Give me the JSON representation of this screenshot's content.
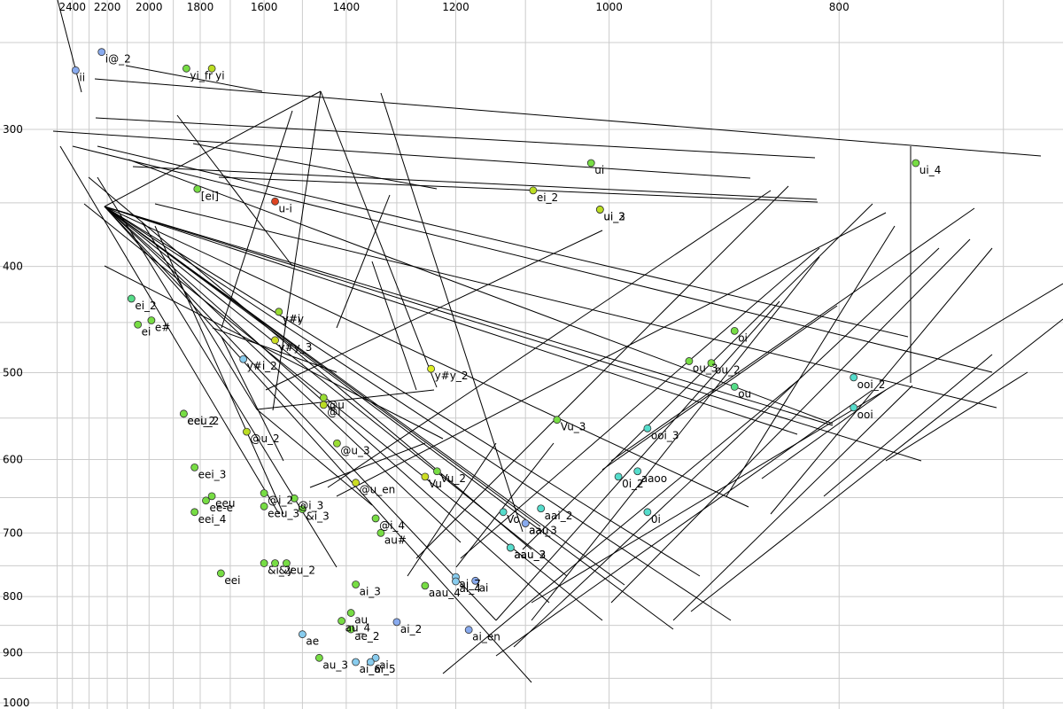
{
  "chart_data": {
    "type": "scatter",
    "title": "",
    "xlabel": "",
    "ylabel": "",
    "x_axis": {
      "reversed": true,
      "scale": "reciprocal",
      "ticks": [
        2400,
        2200,
        2000,
        1800,
        1600,
        1400,
        1200,
        1000,
        800
      ]
    },
    "y_axis": {
      "reversed": true,
      "scale": "log",
      "ticks": [
        300,
        400,
        500,
        600,
        700,
        800,
        900,
        1000
      ]
    },
    "grid": true,
    "points": [
      {
        "label": "ii",
        "f2": 2380,
        "f1": 265,
        "color": "#88aaee"
      },
      {
        "label": "i@_2",
        "f2": 2230,
        "f1": 255,
        "color": "#88aaee"
      },
      {
        "label": "yi_fr",
        "f2": 1850,
        "f1": 264,
        "color": "#77dd44"
      },
      {
        "label": "yi",
        "f2": 1760,
        "f1": 264,
        "color": "#bbdd22"
      },
      {
        "label": "ui",
        "f2": 1020,
        "f1": 322,
        "color": "#77dd44"
      },
      {
        "label": "ui_4",
        "f2": 750,
        "f1": 322,
        "color": "#77dd44"
      },
      {
        "label": "[ei]",
        "f2": 1810,
        "f1": 340,
        "color": "#77dd44"
      },
      {
        "label": "u-i",
        "f2": 1570,
        "f1": 349,
        "color": "#dd4422"
      },
      {
        "label": "ei_2",
        "f2": 1090,
        "f1": 341,
        "color": "#bbdd22"
      },
      {
        "label": "ui_2",
        "f2": 1010,
        "f1": 355,
        "color": "#bbdd22"
      },
      {
        "label": "ui_3",
        "f2": 1010,
        "f1": 355,
        "color": "#bbdd22"
      },
      {
        "label": "ei_2",
        "f2": 2080,
        "f1": 428,
        "color": "#55dd88"
      },
      {
        "label": "ei",
        "f2": 2050,
        "f1": 452,
        "color": "#77dd44"
      },
      {
        "label": "e#",
        "f2": 1990,
        "f1": 448,
        "color": "#77dd44"
      },
      {
        "label": "y#i",
        "f2": 1560,
        "f1": 440,
        "color": "#99dd33"
      },
      {
        "label": "y#y",
        "f2": 1560,
        "f1": 440,
        "color": "#99dd33"
      },
      {
        "label": "y#y_3",
        "f2": 1570,
        "f1": 467,
        "color": "#ccdd22"
      },
      {
        "label": "y#i_2",
        "f2": 1660,
        "f1": 486,
        "color": "#88ccee"
      },
      {
        "label": "y#y_2",
        "f2": 1240,
        "f1": 496,
        "color": "#ddee22"
      },
      {
        "label": "oi",
        "f2": 880,
        "f1": 458,
        "color": "#77dd44"
      },
      {
        "label": "ou_3",
        "f2": 920,
        "f1": 488,
        "color": "#77dd44"
      },
      {
        "label": "ou_2",
        "f2": 900,
        "f1": 490,
        "color": "#77dd44"
      },
      {
        "label": "ou",
        "f2": 880,
        "f1": 515,
        "color": "#55dd88"
      },
      {
        "label": "ooi_2",
        "f2": 790,
        "f1": 505,
        "color": "#55ddcc"
      },
      {
        "label": "ooi",
        "f2": 790,
        "f1": 538,
        "color": "#55ddcc"
      },
      {
        "label": "@u",
        "f2": 1450,
        "f1": 527,
        "color": "#99dd33"
      },
      {
        "label": "@i",
        "f2": 1450,
        "f1": 535,
        "color": "#bbdd22"
      },
      {
        "label": "eeu_2",
        "f2": 1860,
        "f1": 545,
        "color": "#77dd44"
      },
      {
        "label": "eei_2",
        "f2": 1860,
        "f1": 545,
        "color": "#77dd44"
      },
      {
        "label": "@u_2",
        "f2": 1650,
        "f1": 566,
        "color": "#bbdd22"
      },
      {
        "label": "@u_3",
        "f2": 1420,
        "f1": 580,
        "color": "#99dd33"
      },
      {
        "label": "Vu_3",
        "f2": 1060,
        "f1": 552,
        "color": "#77dd44"
      },
      {
        "label": "ooi_3",
        "f2": 960,
        "f1": 562,
        "color": "#55ddcc"
      },
      {
        "label": "eei_3",
        "f2": 1820,
        "f1": 610,
        "color": "#77dd44"
      },
      {
        "label": "Vu",
        "f2": 1250,
        "f1": 622,
        "color": "#ccdd22"
      },
      {
        "label": "Vu_2",
        "f2": 1230,
        "f1": 615,
        "color": "#77dd44"
      },
      {
        "label": "@u_en",
        "f2": 1380,
        "f1": 630,
        "color": "#ccdd22"
      },
      {
        "label": "0i_2",
        "f2": 990,
        "f1": 622,
        "color": "#55ddcc"
      },
      {
        "label": "aaoo",
        "f2": 970,
        "f1": 615,
        "color": "#55ddcc"
      },
      {
        "label": "eeu",
        "f2": 1760,
        "f1": 648,
        "color": "#77dd44"
      },
      {
        "label": "ee-e",
        "f2": 1780,
        "f1": 654,
        "color": "#77dd44"
      },
      {
        "label": "@i_2",
        "f2": 1600,
        "f1": 644,
        "color": "#77dd44"
      },
      {
        "label": "eeu_3",
        "f2": 1600,
        "f1": 662,
        "color": "#77dd44"
      },
      {
        "label": "@i_3",
        "f2": 1520,
        "f1": 651,
        "color": "#77dd44"
      },
      {
        "label": "&i_3",
        "f2": 1500,
        "f1": 666,
        "color": "#77dd44"
      },
      {
        "label": "eei_4",
        "f2": 1820,
        "f1": 670,
        "color": "#77dd44"
      },
      {
        "label": "Vo",
        "f2": 1130,
        "f1": 670,
        "color": "#55ddcc"
      },
      {
        "label": "aai_2",
        "f2": 1080,
        "f1": 665,
        "color": "#55ddcc"
      },
      {
        "label": "0i",
        "f2": 960,
        "f1": 670,
        "color": "#55ddcc"
      },
      {
        "label": "aau",
        "f2": 1100,
        "f1": 686,
        "color": "#88aaee"
      },
      {
        "label": "aai_3",
        "f2": 1100,
        "f1": 686,
        "color": "#88aaee"
      },
      {
        "label": "@i_4",
        "f2": 1340,
        "f1": 679,
        "color": "#77dd44"
      },
      {
        "label": "au#",
        "f2": 1330,
        "f1": 700,
        "color": "#77dd44"
      },
      {
        "label": "aau_2",
        "f2": 1120,
        "f1": 722,
        "color": "#55ddcc"
      },
      {
        "label": "aau_3",
        "f2": 1120,
        "f1": 722,
        "color": "#55ddcc"
      },
      {
        "label": "eei",
        "f2": 1730,
        "f1": 762,
        "color": "#77dd44"
      },
      {
        "label": "&i_2",
        "f2": 1600,
        "f1": 746,
        "color": "#77dd44"
      },
      {
        "label": "&y",
        "f2": 1570,
        "f1": 746,
        "color": "#77dd44"
      },
      {
        "label": "eu_2",
        "f2": 1540,
        "f1": 746,
        "color": "#77dd44"
      },
      {
        "label": "ai_7",
        "f2": 1200,
        "f1": 768,
        "color": "#88ccee"
      },
      {
        "label": "ai_4",
        "f2": 1200,
        "f1": 775,
        "color": "#88ccee"
      },
      {
        "label": "ai",
        "f2": 1170,
        "f1": 774,
        "color": "#88aaee"
      },
      {
        "label": "aau_4",
        "f2": 1250,
        "f1": 782,
        "color": "#77dd44"
      },
      {
        "label": "ai_3",
        "f2": 1380,
        "f1": 780,
        "color": "#77dd44"
      },
      {
        "label": "au",
        "f2": 1390,
        "f1": 828,
        "color": "#77dd44"
      },
      {
        "label": "au_4",
        "f2": 1410,
        "f1": 842,
        "color": "#77dd44"
      },
      {
        "label": "ae_2",
        "f2": 1390,
        "f1": 857,
        "color": "#77dd44"
      },
      {
        "label": "ai_2",
        "f2": 1300,
        "f1": 844,
        "color": "#88aaee"
      },
      {
        "label": "ai_en",
        "f2": 1180,
        "f1": 858,
        "color": "#88aaee"
      },
      {
        "label": "ae",
        "f2": 1500,
        "f1": 866,
        "color": "#88ccee"
      },
      {
        "label": "au_3",
        "f2": 1460,
        "f1": 910,
        "color": "#77dd44"
      },
      {
        "label": "ai",
        "f2": 1340,
        "f1": 910,
        "color": "#88ccee"
      },
      {
        "label": "ai_6",
        "f2": 1380,
        "f1": 918,
        "color": "#88ccee"
      },
      {
        "label": "ai_5",
        "f2": 1350,
        "f1": 918,
        "color": "#88ccee"
      }
    ],
    "transition_lines_count": "many (one per diphthong, start to end)"
  }
}
